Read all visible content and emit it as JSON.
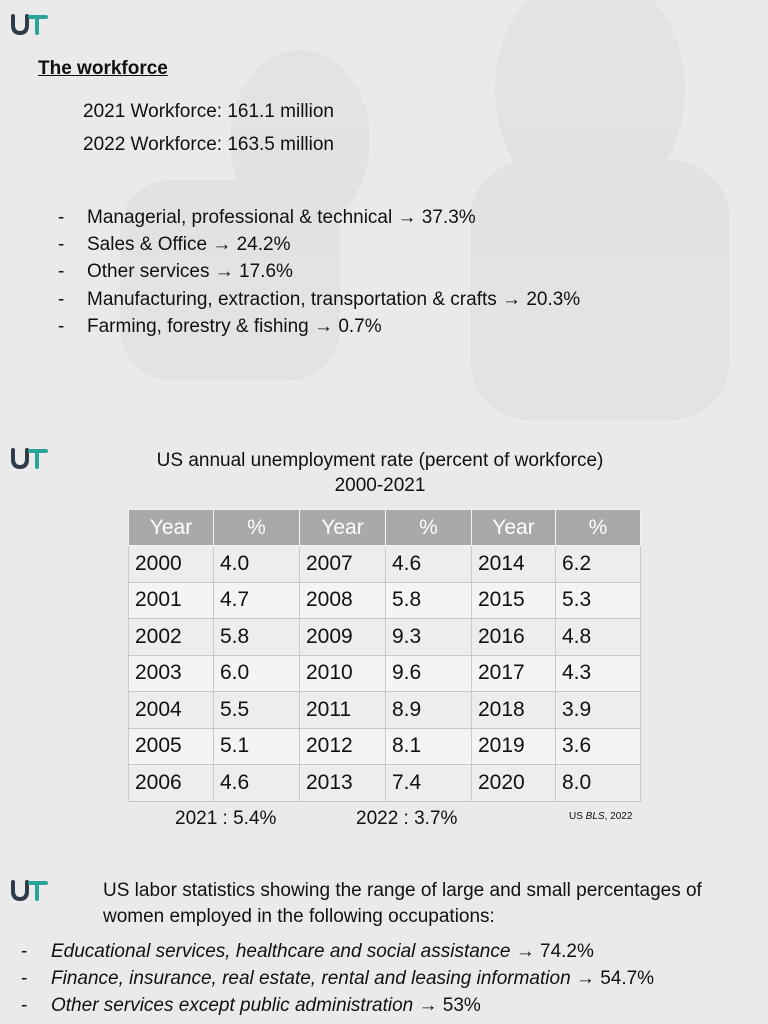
{
  "workforce": {
    "title": "The workforce",
    "lines": [
      "2021 Workforce: 161.1 million",
      "2022 Workforce: 163.5 million"
    ],
    "occupations": [
      {
        "label": "Managerial, professional & technical",
        "value": "37.3%"
      },
      {
        "label": "Sales & Office",
        "value": "24.2%"
      },
      {
        "label": "Other services",
        "value": "17.6%"
      },
      {
        "label": "Manufacturing, extraction, transportation & crafts",
        "value": "20.3%"
      },
      {
        "label": "Farming, forestry & fishing",
        "value": "0.7%"
      }
    ]
  },
  "unemployment": {
    "title_line1": "US annual unemployment rate (percent of workforce)",
    "title_line2": "2000-2021",
    "headers": [
      "Year",
      "%",
      "Year",
      "%",
      "Year",
      "%"
    ],
    "rows": [
      [
        "2000",
        "4.0",
        "2007",
        "4.6",
        "2014",
        "6.2"
      ],
      [
        "2001",
        "4.7",
        "2008",
        "5.8",
        "2015",
        "5.3"
      ],
      [
        "2002",
        "5.8",
        "2009",
        "9.3",
        "2016",
        "4.8"
      ],
      [
        "2003",
        "6.0",
        "2010",
        "9.6",
        "2017",
        "4.3"
      ],
      [
        "2004",
        "5.5",
        "2011",
        "8.9",
        "2018",
        "3.9"
      ],
      [
        "2005",
        "5.1",
        "2012",
        "8.1",
        "2019",
        "3.6"
      ],
      [
        "2006",
        "4.6",
        "2013",
        "7.4",
        "2020",
        "8.0"
      ]
    ],
    "note_2021": "2021 : 5.4%",
    "note_2022": "2022 : 3.7%",
    "source_prefix": "US ",
    "source_italic": "BLS",
    "source_suffix": ", 2022"
  },
  "women": {
    "intro_line1": "US labor statistics showing the range of large and small percentages of",
    "intro_line2": "women employed in the following occupations:",
    "items": [
      {
        "label": "Educational services, healthcare and social assistance",
        "value": "74.2%"
      },
      {
        "label": "Finance, insurance, real estate, rental and leasing information",
        "value": "54.7%"
      },
      {
        "label": "Other services except public administration",
        "value": "53%"
      }
    ]
  },
  "dash": "-",
  "arrow": "→",
  "colors": {
    "logo_dark": "#2f3b46",
    "logo_teal": "#2aa39a",
    "table_header": "#a9a9a9",
    "background": "#eaeaea"
  },
  "icons": [
    "ut-logo-icon"
  ]
}
